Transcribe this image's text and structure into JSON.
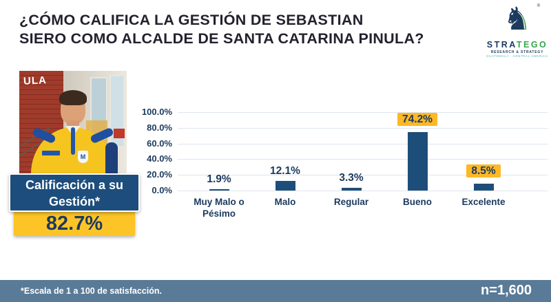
{
  "header": {
    "title_line1": "¿CÓMO CALIFICA LA GESTIÓN DE SEBASTIAN",
    "title_line2": "SIERO COMO ALCALDE DE SANTA CATARINA PINULA?"
  },
  "logo": {
    "brand_primary": "STRA",
    "brand_secondary": "TEGO",
    "registered": "®",
    "tagline1": "RESEARCH & STRATEGY",
    "tagline2": "GUATEMALA · CENTRAL AMERICA",
    "knight_glyph": "♞"
  },
  "photo": {
    "sign_text": "ULA",
    "crest_letter": "M"
  },
  "scorecard": {
    "label_line1": "Calificación a su",
    "label_line2": "Gestión*",
    "value": "82.7%"
  },
  "chart_data": {
    "type": "bar",
    "title": "",
    "xlabel": "",
    "ylabel": "",
    "categories": [
      "Muy Malo o Pésimo",
      "Malo",
      "Regular",
      "Bueno",
      "Excelente"
    ],
    "values": [
      1.9,
      12.1,
      3.3,
      74.2,
      8.5
    ],
    "labels": [
      "1.9%",
      "12.1%",
      "3.3%",
      "74.2%",
      "8.5%"
    ],
    "highlighted": [
      false,
      false,
      false,
      true,
      true
    ],
    "y_ticks": [
      "100.0%",
      "80.0%",
      "60.0%",
      "40.0%",
      "20.0%",
      "0.0%"
    ],
    "ylim": [
      0,
      100
    ],
    "grid": true,
    "legend": "none",
    "bar_color": "#1d4e79",
    "highlight_color": "#fcb827",
    "label_color": "#1b3a5e"
  },
  "footer": {
    "note": "*Escala de 1 a 100 de satisfacción.",
    "sample": "n=1,600"
  },
  "colors": {
    "accent_navy": "#1d4d7c",
    "accent_yellow": "#fdc428",
    "footer_slate": "#5a7b97",
    "grid": "#dde6ee",
    "title_text": "#22222e"
  }
}
